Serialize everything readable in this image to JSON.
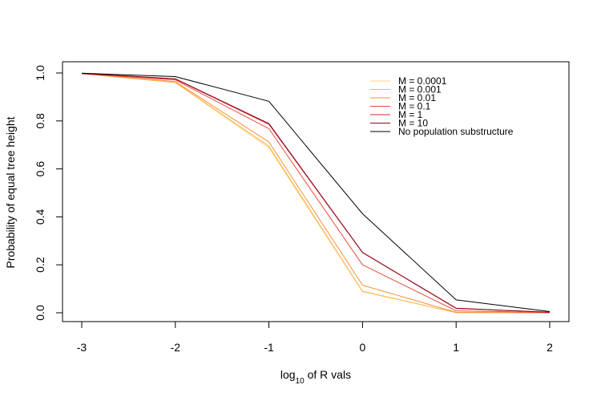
{
  "chart_data": {
    "type": "line",
    "title": "",
    "xlabel_prefix": "log",
    "xlabel_sub": "10",
    "xlabel_suffix": " of R vals",
    "ylabel": "Probability of equal tree height",
    "x": [
      -3,
      -2,
      -1,
      0,
      1,
      2
    ],
    "xlim": [
      -3,
      2
    ],
    "ylim": [
      0,
      1
    ],
    "x_ticks": [
      "-3",
      "-2",
      "-1",
      "0",
      "1",
      "2"
    ],
    "y_ticks": [
      "0.0",
      "0.2",
      "0.4",
      "0.6",
      "0.8",
      "1.0"
    ],
    "legend_position": "top-right",
    "grid": false,
    "series": [
      {
        "name": "M = 0.0001",
        "color": "#FFD27F",
        "values": [
          0.997,
          0.96,
          0.688,
          0.088,
          0.001,
          0.0
        ]
      },
      {
        "name": "M = 0.001",
        "color": "#FDB64F",
        "values": [
          0.997,
          0.961,
          0.695,
          0.09,
          0.001,
          0.0
        ]
      },
      {
        "name": "M = 0.01",
        "color": "#FA8E3F",
        "values": [
          0.997,
          0.964,
          0.712,
          0.115,
          0.002,
          0.0
        ]
      },
      {
        "name": "M = 0.1",
        "color": "#EE4A3A",
        "values": [
          0.998,
          0.971,
          0.768,
          0.2,
          0.008,
          0.001
        ]
      },
      {
        "name": "M = 1",
        "color": "#D81F2B",
        "values": [
          0.998,
          0.975,
          0.786,
          0.251,
          0.018,
          0.002
        ]
      },
      {
        "name": "M = 10",
        "color": "#8C0A1E",
        "values": [
          0.998,
          0.976,
          0.789,
          0.252,
          0.019,
          0.002
        ]
      },
      {
        "name": "No population substructure",
        "color": "#000000",
        "values": [
          0.999,
          0.985,
          0.882,
          0.413,
          0.054,
          0.005
        ]
      }
    ]
  }
}
